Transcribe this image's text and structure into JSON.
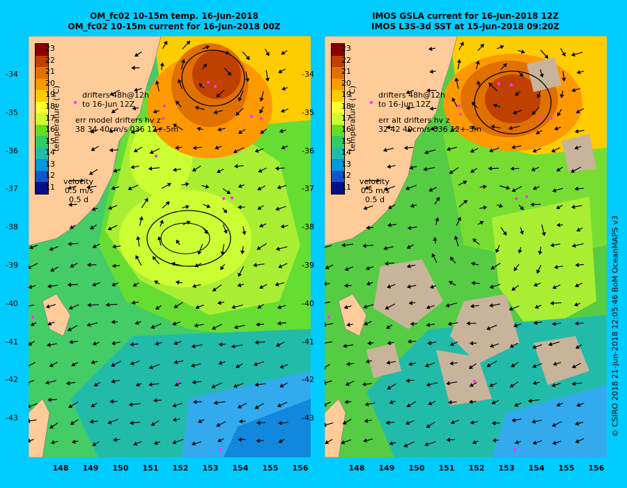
{
  "left_panel": {
    "title_line1": "OM_fc02 10-15m temp. 16-Jun-2018",
    "title_line2": "OM_fc02 10-15m current for 16-Jun-2018 00Z",
    "drifter_label_line1": "drifters 48h@12h",
    "drifter_label_line2": "to 16-Jun 12Z",
    "err_label": "err model drifters hv z",
    "err_values": "38 34 40cm/s 036 12+-5m"
  },
  "right_panel": {
    "title_line1": "IMOS GSLA current for 16-Jun-2018 12Z",
    "title_line2": "IMOS L3S-3d SST at 15-Jun-2018 09:20Z",
    "drifter_label_line1": "drifters 48h@12h",
    "drifter_label_line2": "to 16-Jun 12Z",
    "err_label": "err alt drifters hv z",
    "err_values": "32 42 40cm/s 036 12+-5m"
  },
  "colorbar": {
    "title": "temperature (°C)",
    "ticks": [
      "23",
      "22",
      "21",
      "20",
      "19",
      "18",
      "17",
      "16",
      "15",
      "14",
      "13",
      "12",
      "11"
    ],
    "colors": [
      "#8b0000",
      "#c04000",
      "#e07000",
      "#ff9900",
      "#ffcc00",
      "#ffff33",
      "#ccff33",
      "#66dd22",
      "#33cc66",
      "#22bbaa",
      "#0099dd",
      "#1155cc",
      "#001188"
    ]
  },
  "velocity_legend": {
    "title": "velocity",
    "speed": "0.5 m/s",
    "duration": "0.5 d"
  },
  "axes": {
    "lat_ticks": [
      "-34",
      "-35",
      "-36",
      "-37",
      "-38",
      "-39",
      "-40",
      "-41",
      "-42",
      "-43"
    ],
    "lon_ticks": [
      "148",
      "149",
      "150",
      "151",
      "152",
      "153",
      "154",
      "155",
      "156"
    ]
  },
  "credit": "© CSIRO 2018   21-Jun-2018 12:05:46 BoM OceanMAPS v3",
  "colors": {
    "background": "#00ccff",
    "land": "#ffcc99",
    "drifter": "#ff33ff",
    "missing_data": "#c8b49a"
  }
}
